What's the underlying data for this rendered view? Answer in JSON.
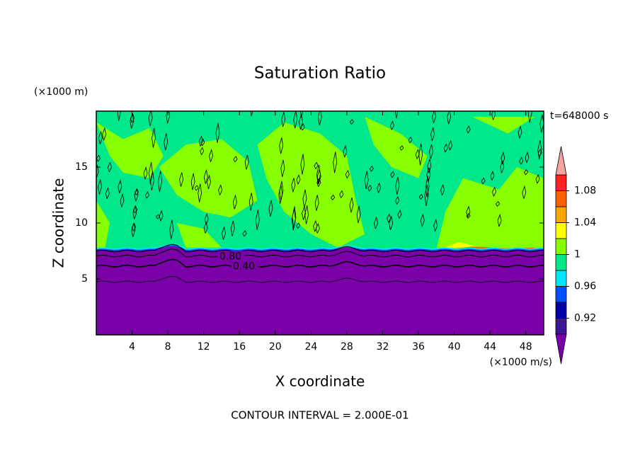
{
  "chart_data": {
    "type": "contour",
    "title": "Saturation Ratio",
    "y_unit_label": "(×1000 m)",
    "x_unit_label": "(×1000 m/s)",
    "xlabel": "X coordinate",
    "ylabel": "Z coordinate",
    "time_label": "t=648000 s",
    "footer": "CONTOUR INTERVAL = 2.000E-01",
    "xlim": [
      0,
      50
    ],
    "xticks": [
      4,
      8,
      12,
      16,
      20,
      24,
      28,
      32,
      36,
      40,
      44,
      48
    ],
    "ylim": [
      0,
      20
    ],
    "yticks": [
      5,
      10,
      15
    ],
    "contour_labels": [
      {
        "value": 0.8,
        "label": "0.80"
      },
      {
        "value": 0.4,
        "label": "0.40"
      }
    ],
    "colorbar": {
      "levels": [
        0.9,
        0.92,
        0.94,
        0.96,
        0.98,
        1,
        1.02,
        1.04,
        1.06,
        1.08,
        1.1
      ],
      "ticks": [
        0.92,
        0.96,
        1,
        1.04,
        1.08
      ],
      "colors": [
        "#7a00a8",
        "#3c1896",
        "#0000a8",
        "#0050ff",
        "#00e5ff",
        "#00e88a",
        "#88ff00",
        "#ffff00",
        "#ffa500",
        "#ff6000",
        "#ff2020",
        "#f5a3a3"
      ]
    }
  }
}
